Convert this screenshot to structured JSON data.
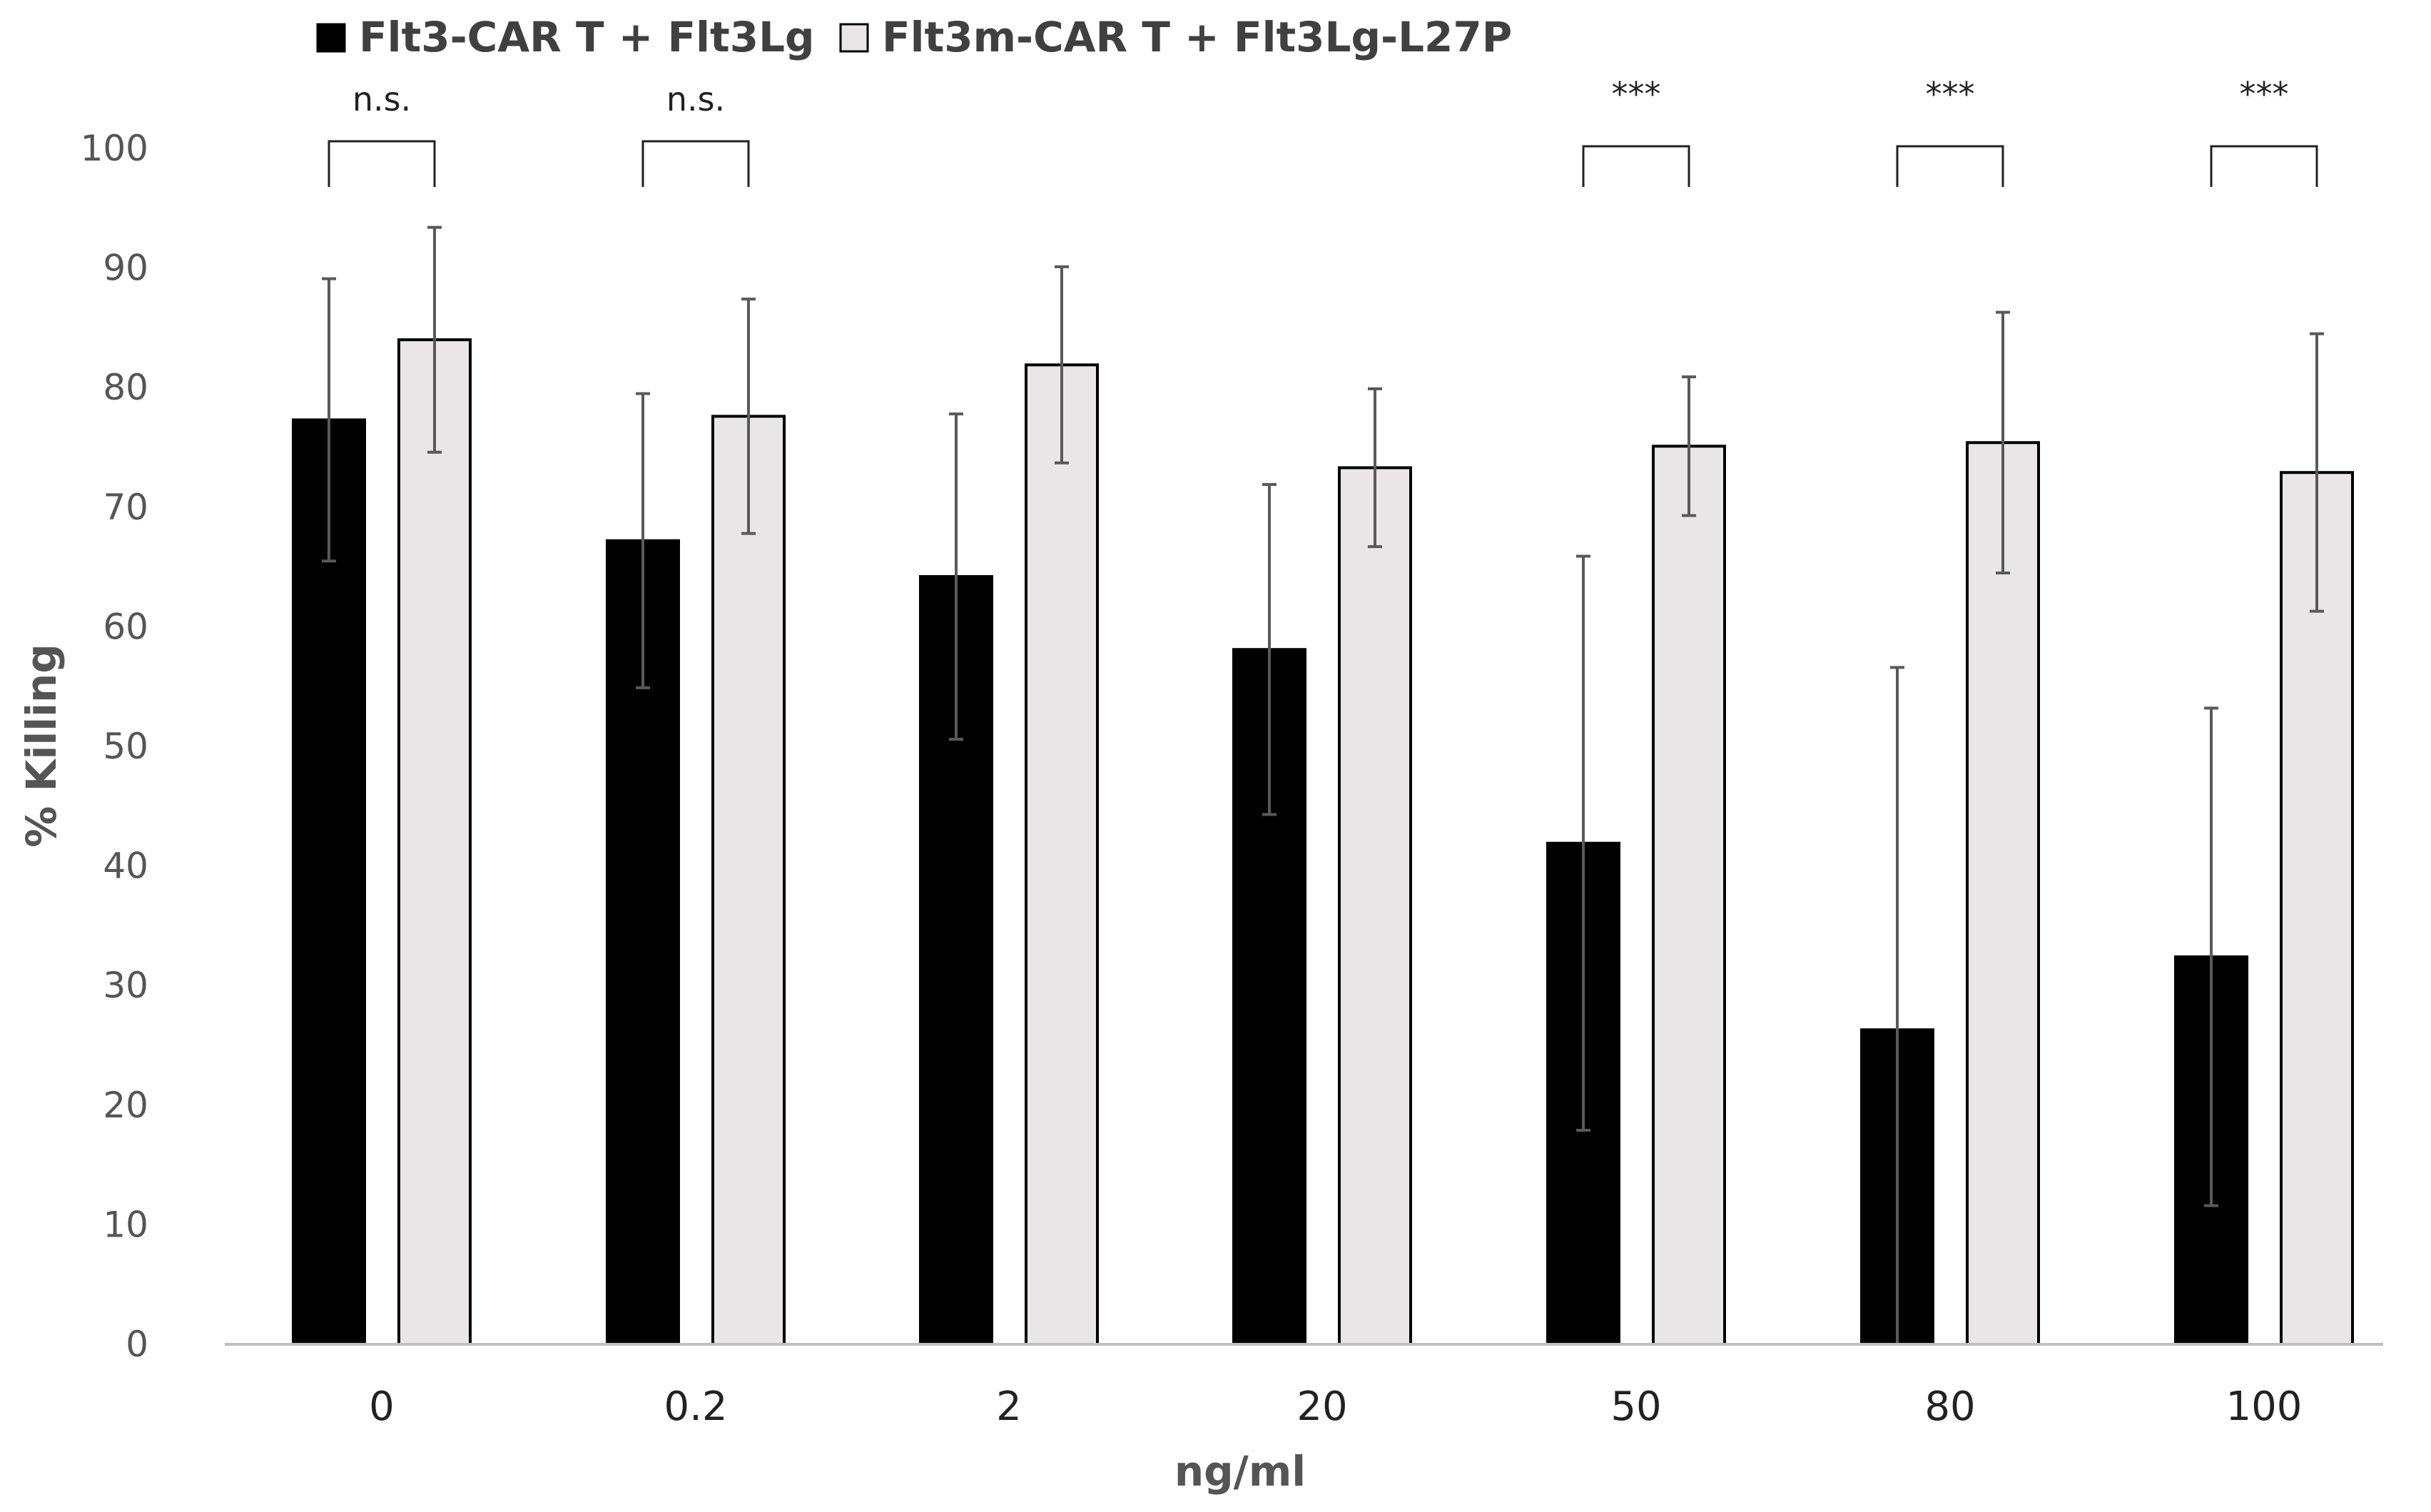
{
  "chart_data": {
    "type": "bar",
    "title": "",
    "xlabel": "ng/ml",
    "ylabel": "% Killing",
    "ylim": [
      0,
      100
    ],
    "yticks": [
      0,
      10,
      20,
      30,
      40,
      50,
      60,
      70,
      80,
      90,
      100
    ],
    "categories": [
      "0",
      "0.2",
      "2",
      "20",
      "50",
      "80",
      "100"
    ],
    "legend_position": "top-left",
    "grid": false,
    "series": [
      {
        "name": "Flt3-CAR T + Flt3Lg",
        "color": "#000000",
        "edge_color": "#000000",
        "values": [
          77.3,
          67.2,
          64.2,
          58.1,
          41.9,
          26.3,
          32.4
        ],
        "errors": [
          11.8,
          12.3,
          13.6,
          13.8,
          24.0,
          30.3,
          20.8
        ]
      },
      {
        "name": "Flt3m-CAR T + Flt3Lg-L27P",
        "color": "#e8e6e7",
        "edge_color": "#000000",
        "values": [
          84.0,
          77.6,
          81.9,
          73.3,
          75.1,
          75.4,
          72.9
        ],
        "errors": [
          9.4,
          9.8,
          8.2,
          6.6,
          5.8,
          10.9,
          11.6
        ]
      }
    ],
    "significance": [
      "n.s.",
      "n.s.",
      "",
      "",
      "***",
      "***",
      "***"
    ],
    "error_bar_color": "#595959"
  }
}
